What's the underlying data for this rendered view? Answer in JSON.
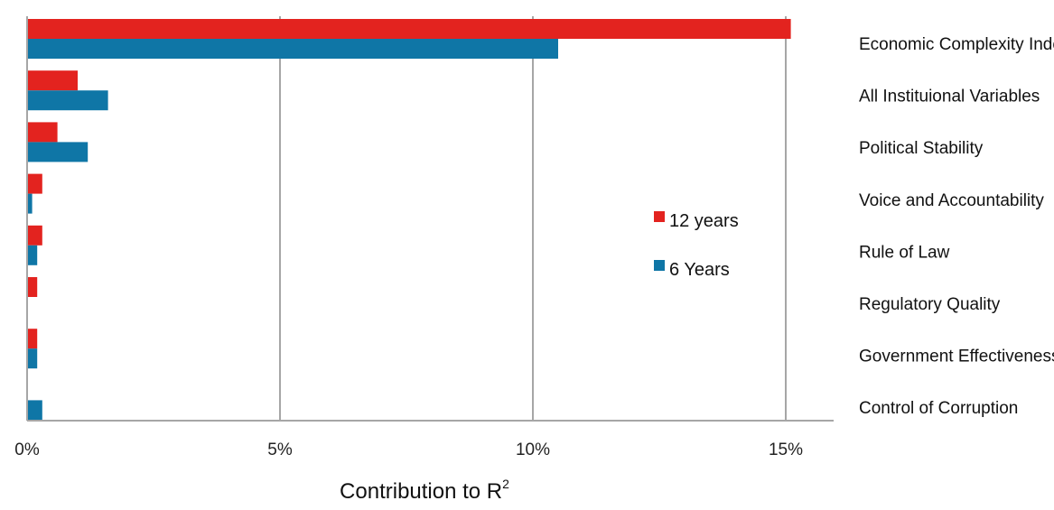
{
  "chart_data": {
    "type": "bar",
    "orientation": "horizontal",
    "categories": [
      "Economic Complexity Index",
      "All Instituional Variables",
      "Political Stability",
      "Voice and Accountability",
      "Rule of Law",
      "Regulatory Quality",
      "Government Effectiveness",
      "Control of Corruption"
    ],
    "series": [
      {
        "name": "12 years",
        "color": "#e3231f",
        "values": [
          15.1,
          1.0,
          0.6,
          0.3,
          0.3,
          0.2,
          0.2,
          0.0
        ]
      },
      {
        "name": "6 Years",
        "color": "#0f76a6",
        "values": [
          10.5,
          1.6,
          1.2,
          0.1,
          0.2,
          0.0,
          0.2,
          0.3
        ]
      }
    ],
    "xlabel": "Contribution to R",
    "xlabel_superscript": "2",
    "xlim": [
      0,
      16
    ],
    "xticks": [
      0,
      5,
      10,
      15
    ],
    "xtick_labels": [
      "0%",
      "5%",
      "10%",
      "15%"
    ],
    "grid": "vertical",
    "legend": "inside-right",
    "gridline_color": "#a6a6a6",
    "text_color": "#111111"
  }
}
